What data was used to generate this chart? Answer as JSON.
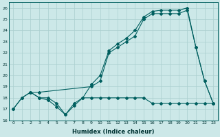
{
  "xlabel": "Humidex (Indice chaleur)",
  "xlim": [
    -0.5,
    23.5
  ],
  "ylim": [
    16,
    26.5
  ],
  "yticks": [
    16,
    17,
    18,
    19,
    20,
    21,
    22,
    23,
    24,
    25,
    26
  ],
  "xticks": [
    0,
    1,
    2,
    3,
    4,
    5,
    6,
    7,
    8,
    9,
    10,
    11,
    12,
    13,
    14,
    15,
    16,
    17,
    18,
    19,
    20,
    21,
    22,
    23
  ],
  "bg_color": "#cce8e8",
  "line_color": "#005f5f",
  "grid_color": "#aacfcf",
  "line1_x": [
    0,
    1,
    2,
    3,
    4,
    5,
    6,
    7,
    8,
    9,
    10,
    11,
    12,
    13,
    14,
    15,
    16,
    17,
    18,
    19,
    20,
    21,
    22,
    23
  ],
  "line1_y": [
    17,
    18,
    18.5,
    18,
    18,
    17.5,
    16.5,
    17.5,
    18,
    19.2,
    20,
    22.2,
    22.8,
    23.3,
    24,
    25.2,
    25.7,
    25.8,
    25.8,
    25.8,
    26.0,
    22.5,
    19.5,
    17.5
  ],
  "line2_x": [
    2,
    3,
    9,
    10,
    11,
    12,
    13,
    14,
    15,
    16,
    17,
    18,
    19,
    20,
    21,
    22,
    23
  ],
  "line2_y": [
    18.5,
    18.5,
    19,
    19.5,
    22,
    22.5,
    23,
    23.5,
    25,
    25.5,
    25.5,
    25.5,
    25.5,
    25.8,
    22.5,
    19.5,
    17.5
  ],
  "line3_x": [
    0,
    1,
    2,
    3,
    4,
    5,
    6,
    7,
    8,
    9,
    10,
    11,
    12,
    13,
    14,
    15,
    16,
    17,
    18,
    19,
    20,
    21,
    22,
    23
  ],
  "line3_y": [
    17,
    18,
    18.5,
    18,
    17.8,
    17.2,
    16.5,
    17.3,
    18,
    18,
    18,
    18,
    18,
    18,
    18,
    18,
    17.5,
    17.5,
    17.5,
    17.5,
    17.5,
    17.5,
    17.5,
    17.5
  ]
}
